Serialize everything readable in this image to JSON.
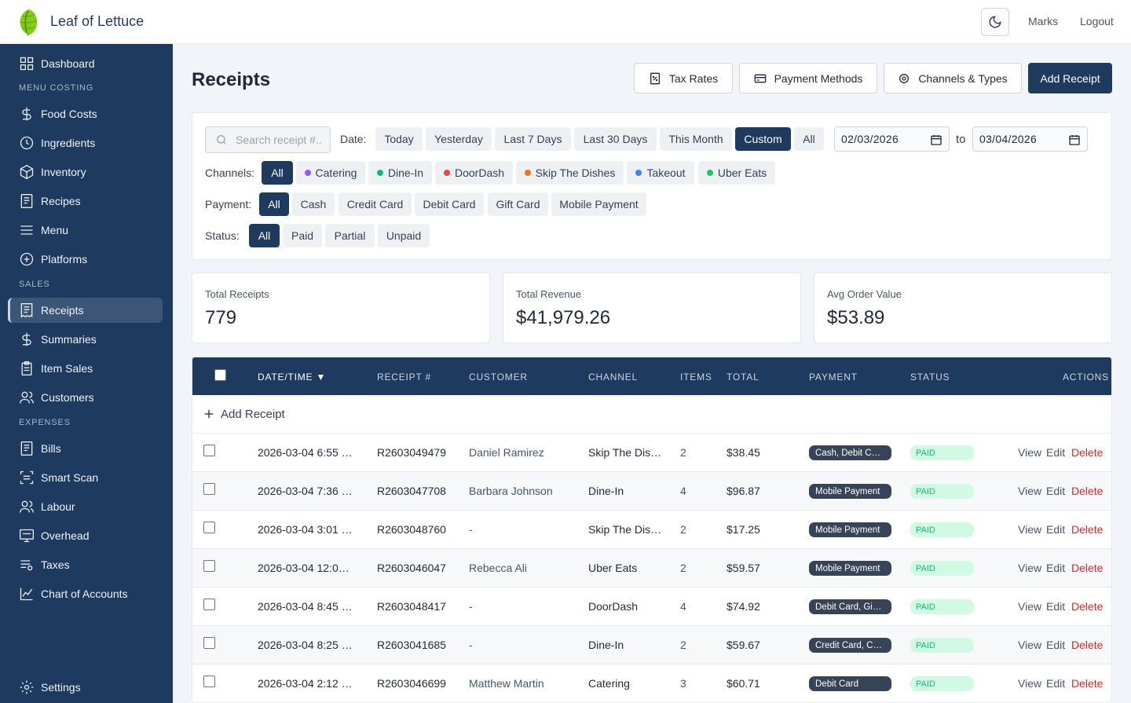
{
  "header": {
    "brand": "Leaf of Lettuce",
    "user": "Marks",
    "logout": "Logout"
  },
  "sidebar": {
    "items": [
      {
        "label": "Dashboard",
        "icon": "dashboard-icon"
      },
      {
        "section": "MENU COSTING"
      },
      {
        "label": "Food Costs",
        "icon": "dollar-icon"
      },
      {
        "label": "Ingredients",
        "icon": "clock-icon"
      },
      {
        "label": "Inventory",
        "icon": "box-icon"
      },
      {
        "label": "Recipes",
        "icon": "document-icon"
      },
      {
        "label": "Menu",
        "icon": "menu-icon"
      },
      {
        "label": "Platforms",
        "icon": "plus-circle-icon"
      },
      {
        "section": "SALES"
      },
      {
        "label": "Receipts",
        "icon": "receipt-icon",
        "active": true
      },
      {
        "label": "Summaries",
        "icon": "dollar-icon"
      },
      {
        "label": "Item Sales",
        "icon": "clipboard-icon"
      },
      {
        "label": "Customers",
        "icon": "users-icon"
      },
      {
        "section": "EXPENSES"
      },
      {
        "label": "Bills",
        "icon": "document-icon"
      },
      {
        "label": "Smart Scan",
        "icon": "scan-icon"
      },
      {
        "label": "Labour",
        "icon": "users-icon"
      },
      {
        "label": "Overhead",
        "icon": "monitor-icon"
      },
      {
        "label": "Taxes",
        "icon": "list-icon"
      },
      {
        "label": "Chart of Accounts",
        "icon": "chart-line-icon"
      }
    ],
    "settings": "Settings"
  },
  "page": {
    "title": "Receipts",
    "buttons": {
      "tax_rates": "Tax Rates",
      "payment_methods": "Payment Methods",
      "channels_types": "Channels & Types",
      "add_receipt": "Add Receipt"
    }
  },
  "filters": {
    "search_placeholder": "Search receipt #...",
    "date_label": "Date:",
    "date_options": [
      "Today",
      "Yesterday",
      "Last 7 Days",
      "Last 30 Days",
      "This Month",
      "Custom",
      "All"
    ],
    "date_selected": "Custom",
    "date_from": "02/03/2026",
    "date_to_label": "to",
    "date_to": "03/04/2026",
    "channels_label": "Channels:",
    "channels": [
      {
        "label": "All"
      },
      {
        "label": "Catering",
        "color": "#8b5cf6"
      },
      {
        "label": "Dine-In",
        "color": "#10b981"
      },
      {
        "label": "DoorDash",
        "color": "#ef4444"
      },
      {
        "label": "Skip The Dishes",
        "color": "#f97316"
      },
      {
        "label": "Takeout",
        "color": "#3b82f6"
      },
      {
        "label": "Uber Eats",
        "color": "#22c55e"
      }
    ],
    "payment_label": "Payment:",
    "payments": [
      "All",
      "Cash",
      "Credit Card",
      "Debit Card",
      "Gift Card",
      "Mobile Payment"
    ],
    "status_label": "Status:",
    "statuses": [
      "All",
      "Paid",
      "Partial",
      "Unpaid"
    ]
  },
  "summary": {
    "total_receipts_label": "Total Receipts",
    "total_receipts": "779",
    "total_revenue_label": "Total Revenue",
    "total_revenue": "$41,979.26",
    "avg_order_label": "Avg Order Value",
    "avg_order": "$53.89"
  },
  "table": {
    "headers": {
      "datetime": "DATE/TIME ▼",
      "receipt": "RECEIPT #",
      "customer": "CUSTOMER",
      "channel": "CHANNEL",
      "items": "ITEMS",
      "total": "TOTAL",
      "payment": "PAYMENT",
      "status": "STATUS",
      "actions": "ACTIONS"
    },
    "add_row": "Add Receipt",
    "actions": {
      "view": "View",
      "edit": "Edit",
      "delete": "Delete"
    },
    "rows": [
      {
        "datetime": "2026-03-04 6:55 …",
        "receipt": "R2603049479",
        "customer": "Daniel Ramirez",
        "channel": "Skip The Dis…",
        "items": "2",
        "total": "$38.45",
        "payment": "Cash, Debit C…",
        "status": "PAID"
      },
      {
        "datetime": "2026-03-04 7:36 …",
        "receipt": "R2603047708",
        "customer": "Barbara Johnson",
        "channel": "Dine-In",
        "items": "4",
        "total": "$96.87",
        "payment": "Mobile Payment",
        "status": "PAID"
      },
      {
        "datetime": "2026-03-04 3:01 …",
        "receipt": "R2603048760",
        "customer": "-",
        "channel": "Skip The Dis…",
        "items": "2",
        "total": "$17.25",
        "payment": "Mobile Payment",
        "status": "PAID"
      },
      {
        "datetime": "2026-03-04 12:0…",
        "receipt": "R2603046047",
        "customer": "Rebecca Ali",
        "channel": "Uber Eats",
        "items": "2",
        "total": "$59.57",
        "payment": "Mobile Payment",
        "status": "PAID"
      },
      {
        "datetime": "2026-03-04 8:45 …",
        "receipt": "R2603048417",
        "customer": "-",
        "channel": "DoorDash",
        "items": "4",
        "total": "$74.92",
        "payment": "Debit Card, Gi…",
        "status": "PAID"
      },
      {
        "datetime": "2026-03-04 8:25 …",
        "receipt": "R2603041685",
        "customer": "-",
        "channel": "Dine-In",
        "items": "2",
        "total": "$59.67",
        "payment": "Credit Card, C…",
        "status": "PAID"
      },
      {
        "datetime": "2026-03-04 2:12 …",
        "receipt": "R2603046699",
        "customer": "Matthew Martin",
        "channel": "Catering",
        "items": "3",
        "total": "$60.71",
        "payment": "Debit Card",
        "status": "PAID"
      }
    ]
  }
}
